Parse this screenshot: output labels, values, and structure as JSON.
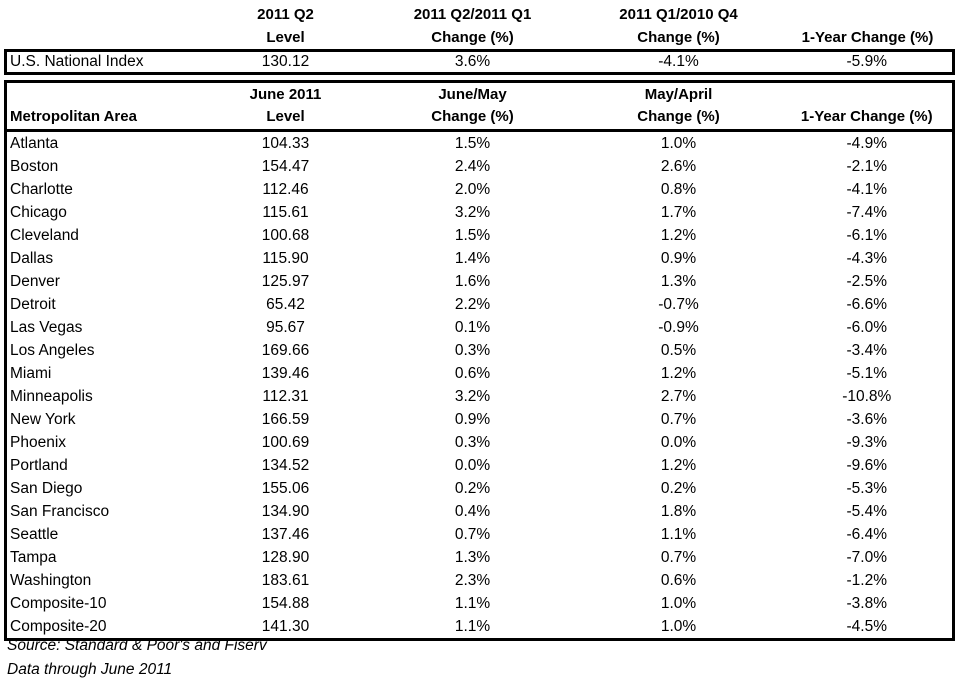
{
  "top_header": {
    "col1_line1": "2011 Q2",
    "col1_line2": "Level",
    "col2_line1": "2011 Q2/2011 Q1",
    "col2_line2": "Change (%)",
    "col3_line1": "2011 Q1/2010 Q4",
    "col3_line2": "Change (%)",
    "col4_line1": "",
    "col4_line2": "1-Year Change (%)"
  },
  "national": {
    "name": "U.S. National Index",
    "level": "130.12",
    "qoq": "3.6%",
    "prev_q": "-4.1%",
    "yoy": "-5.9%"
  },
  "metro_header": {
    "area_label": "Metropolitan Area",
    "col1_line1": "June 2011",
    "col1_line2": "Level",
    "col2_line1": "June/May",
    "col2_line2": "Change (%)",
    "col3_line1": "May/April",
    "col3_line2": "Change (%)",
    "col4_line1": "",
    "col4_line2": "1-Year Change (%)"
  },
  "rows": [
    {
      "area": "Atlanta",
      "level": "104.33",
      "mom": "1.5%",
      "prev": "1.0%",
      "yoy": "-4.9%"
    },
    {
      "area": "Boston",
      "level": "154.47",
      "mom": "2.4%",
      "prev": "2.6%",
      "yoy": "-2.1%"
    },
    {
      "area": "Charlotte",
      "level": "112.46",
      "mom": "2.0%",
      "prev": "0.8%",
      "yoy": "-4.1%"
    },
    {
      "area": "Chicago",
      "level": "115.61",
      "mom": "3.2%",
      "prev": "1.7%",
      "yoy": "-7.4%"
    },
    {
      "area": "Cleveland",
      "level": "100.68",
      "mom": "1.5%",
      "prev": "1.2%",
      "yoy": "-6.1%"
    },
    {
      "area": "Dallas",
      "level": "115.90",
      "mom": "1.4%",
      "prev": "0.9%",
      "yoy": "-4.3%"
    },
    {
      "area": "Denver",
      "level": "125.97",
      "mom": "1.6%",
      "prev": "1.3%",
      "yoy": "-2.5%"
    },
    {
      "area": "Detroit",
      "level": "65.42",
      "mom": "2.2%",
      "prev": "-0.7%",
      "yoy": "-6.6%"
    },
    {
      "area": "Las Vegas",
      "level": "95.67",
      "mom": "0.1%",
      "prev": "-0.9%",
      "yoy": "-6.0%"
    },
    {
      "area": "Los Angeles",
      "level": "169.66",
      "mom": "0.3%",
      "prev": "0.5%",
      "yoy": "-3.4%"
    },
    {
      "area": "Miami",
      "level": "139.46",
      "mom": "0.6%",
      "prev": "1.2%",
      "yoy": "-5.1%"
    },
    {
      "area": "Minneapolis",
      "level": "112.31",
      "mom": "3.2%",
      "prev": "2.7%",
      "yoy": "-10.8%"
    },
    {
      "area": "New York",
      "level": "166.59",
      "mom": "0.9%",
      "prev": "0.7%",
      "yoy": "-3.6%"
    },
    {
      "area": "Phoenix",
      "level": "100.69",
      "mom": "0.3%",
      "prev": "0.0%",
      "yoy": "-9.3%"
    },
    {
      "area": "Portland",
      "level": "134.52",
      "mom": "0.0%",
      "prev": "1.2%",
      "yoy": "-9.6%"
    },
    {
      "area": "San Diego",
      "level": "155.06",
      "mom": "0.2%",
      "prev": "0.2%",
      "yoy": "-5.3%"
    },
    {
      "area": "San Francisco",
      "level": "134.90",
      "mom": "0.4%",
      "prev": "1.8%",
      "yoy": "-5.4%"
    },
    {
      "area": "Seattle",
      "level": "137.46",
      "mom": "0.7%",
      "prev": "1.1%",
      "yoy": "-6.4%"
    },
    {
      "area": "Tampa",
      "level": "128.90",
      "mom": "1.3%",
      "prev": "0.7%",
      "yoy": "-7.0%"
    },
    {
      "area": "Washington",
      "level": "183.61",
      "mom": "2.3%",
      "prev": "0.6%",
      "yoy": "-1.2%"
    },
    {
      "area": "Composite-10",
      "level": "154.88",
      "mom": "1.1%",
      "prev": "1.0%",
      "yoy": "-3.8%"
    },
    {
      "area": "Composite-20",
      "level": "141.30",
      "mom": "1.1%",
      "prev": "1.0%",
      "yoy": "-4.5%"
    }
  ],
  "footer": {
    "source": "Source: Standard & Poor's and Fiserv",
    "data_through": "Data through June 2011"
  }
}
